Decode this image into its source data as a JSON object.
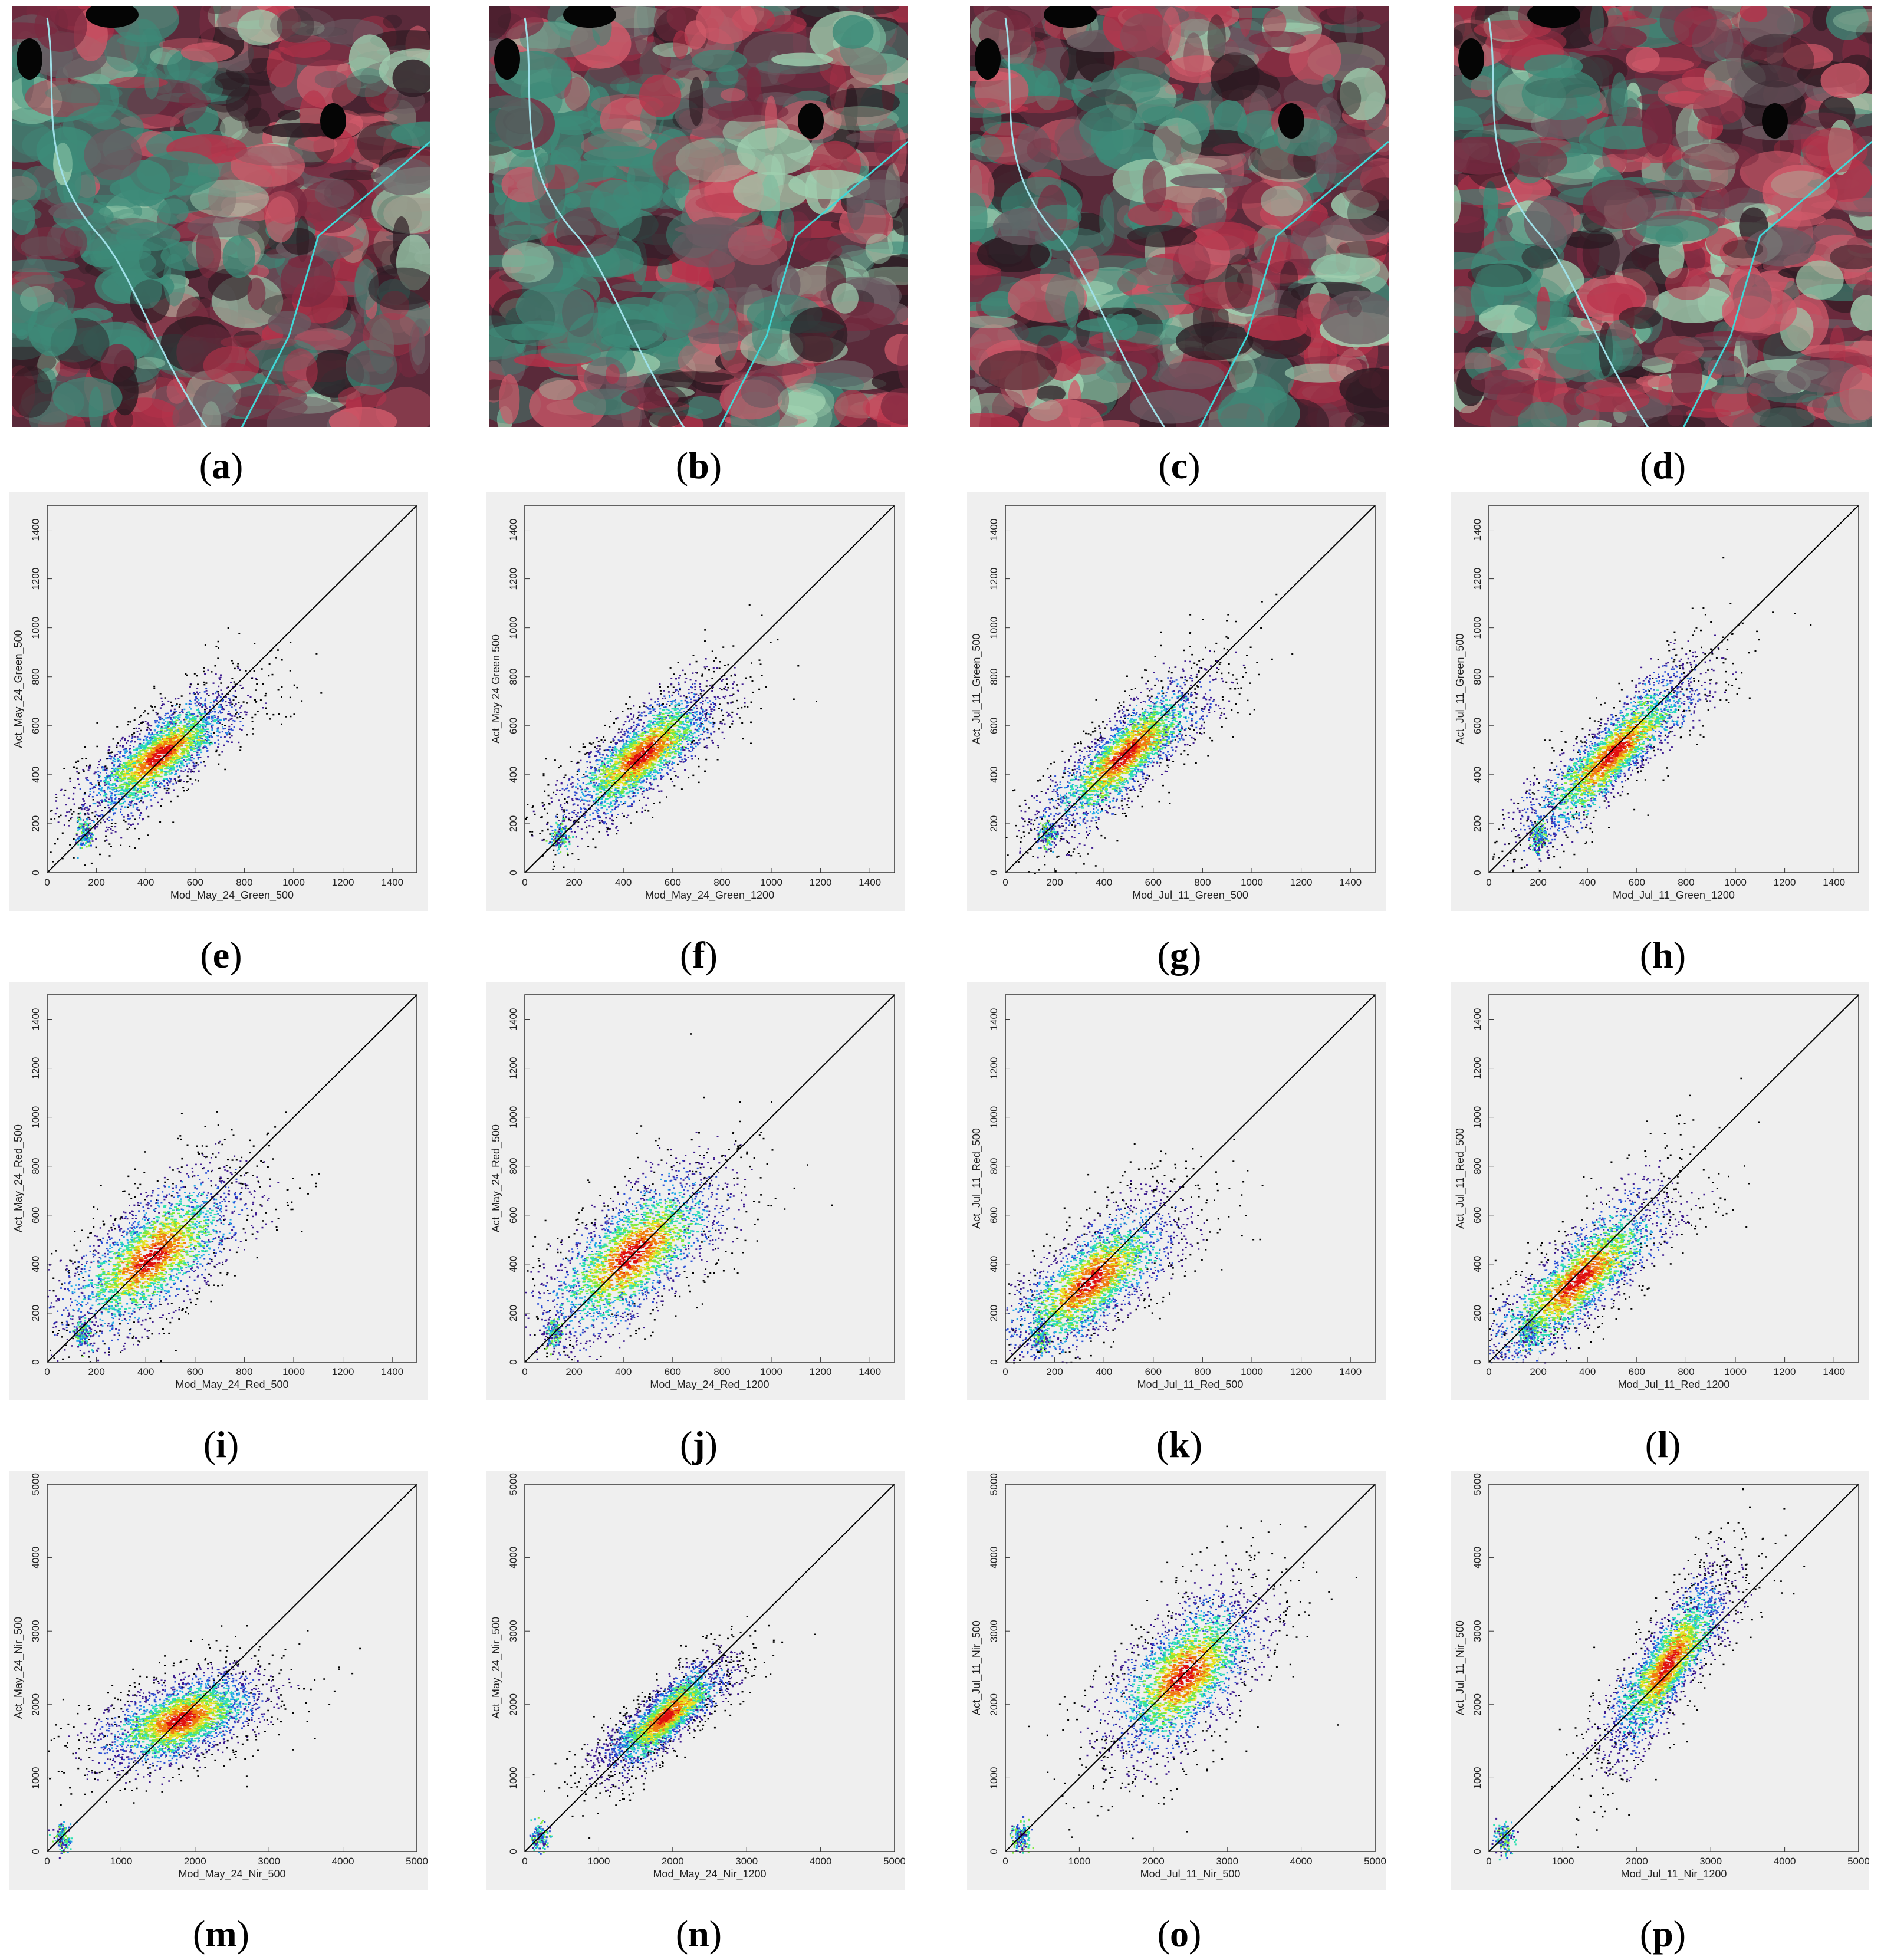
{
  "colors": {
    "plot_background": "#efefef",
    "axis": "#333333",
    "identity_line": "#000000",
    "density_ramp": [
      "#000000",
      "#3d1a8f",
      "#2a4fd6",
      "#21a8e8",
      "#2fe0b0",
      "#7ee83c",
      "#e8e020",
      "#f07a10",
      "#e01010"
    ],
    "satellite_palette": [
      "#b8324a",
      "#7a2a40",
      "#3d8a78",
      "#9fd0b0",
      "#d05a6a",
      "#2c1a22",
      "#6b5a62"
    ]
  },
  "image_panels": [
    {
      "id": "a",
      "label": "a",
      "variant": 0
    },
    {
      "id": "b",
      "label": "b",
      "variant": 1
    },
    {
      "id": "c",
      "label": "c",
      "variant": 2
    },
    {
      "id": "d",
      "label": "d",
      "variant": 3
    }
  ],
  "chart_data": [
    {
      "id": "e",
      "label": "e",
      "type": "scatter",
      "xlabel": "Mod_May_24_Green_500",
      "ylabel": "Act_May_24_Green_500",
      "xlim": [
        0,
        1500
      ],
      "ylim": [
        0,
        1500
      ],
      "xticks": [
        "0",
        "200",
        "400",
        "600",
        "800",
        "1000",
        "1200",
        "1400"
      ],
      "yticks": [
        "0",
        "200",
        "400",
        "600",
        "800",
        "1000",
        "1200",
        "1400"
      ],
      "density_center": [
        450,
        480
      ],
      "density_spread": [
        170,
        140
      ],
      "density_corr": 0.8,
      "low_cluster": [
        150,
        160
      ],
      "identity_line": true
    },
    {
      "id": "f",
      "label": "f",
      "type": "scatter",
      "xlabel": "Mod_May_24_Green_1200",
      "ylabel": "Act_May 24 Green 500",
      "xlim": [
        0,
        1500
      ],
      "ylim": [
        0,
        1500
      ],
      "xticks": [
        "0",
        "200",
        "400",
        "600",
        "800",
        "1000",
        "1200",
        "1400"
      ],
      "yticks": [
        "0",
        "200",
        "400",
        "600",
        "800",
        "1000",
        "1200",
        "1400"
      ],
      "density_center": [
        470,
        480
      ],
      "density_spread": [
        170,
        150
      ],
      "density_corr": 0.8,
      "low_cluster": [
        140,
        150
      ],
      "identity_line": true
    },
    {
      "id": "g",
      "label": "g",
      "type": "scatter",
      "xlabel": "Mod_Jul_11_Green_500",
      "ylabel": "Act_Jul_11_Green_500",
      "xlim": [
        0,
        1500
      ],
      "ylim": [
        0,
        1500
      ],
      "xticks": [
        "0",
        "200",
        "400",
        "600",
        "800",
        "1000",
        "1200",
        "1400"
      ],
      "yticks": [
        "0",
        "200",
        "400",
        "600",
        "800",
        "1000",
        "1200",
        "1400"
      ],
      "density_center": [
        480,
        480
      ],
      "density_spread": [
        180,
        170
      ],
      "density_corr": 0.85,
      "low_cluster": [
        170,
        160
      ],
      "identity_line": true
    },
    {
      "id": "h",
      "label": "h",
      "type": "scatter",
      "xlabel": "Mod_Jul_11_Green_1200",
      "ylabel": "Act_Jul_11_Green_500",
      "xlim": [
        0,
        1500
      ],
      "ylim": [
        0,
        1500
      ],
      "xticks": [
        "0",
        "200",
        "400",
        "600",
        "800",
        "1000",
        "1200",
        "1400"
      ],
      "yticks": [
        "0",
        "200",
        "400",
        "600",
        "800",
        "1000",
        "1200",
        "1400"
      ],
      "density_center": [
        500,
        490
      ],
      "density_spread": [
        190,
        190
      ],
      "density_corr": 0.9,
      "low_cluster": [
        200,
        150
      ],
      "identity_line": true
    },
    {
      "id": "i",
      "label": "i",
      "type": "scatter",
      "xlabel": "Mod_May_24_Red_500",
      "ylabel": "Act_May_24_Red_500",
      "xlim": [
        0,
        1500
      ],
      "ylim": [
        0,
        1500
      ],
      "xticks": [
        "0",
        "200",
        "400",
        "600",
        "800",
        "1000",
        "1200",
        "1400"
      ],
      "yticks": [
        "0",
        "200",
        "400",
        "600",
        "800",
        "1000",
        "1200",
        "1400"
      ],
      "density_center": [
        420,
        430
      ],
      "density_spread": [
        200,
        180
      ],
      "density_corr": 0.7,
      "low_cluster": [
        140,
        120
      ],
      "identity_line": true
    },
    {
      "id": "j",
      "label": "j",
      "type": "scatter",
      "xlabel": "Mod_May_24_Red_1200",
      "ylabel": "Act_May_24_Red_500",
      "xlim": [
        0,
        1500
      ],
      "ylim": [
        0,
        1500
      ],
      "xticks": [
        "0",
        "200",
        "400",
        "600",
        "800",
        "1000",
        "1200",
        "1400"
      ],
      "yticks": [
        "0",
        "200",
        "400",
        "600",
        "800",
        "1000",
        "1200",
        "1400"
      ],
      "density_center": [
        430,
        440
      ],
      "density_spread": [
        200,
        190
      ],
      "density_corr": 0.7,
      "low_cluster": [
        120,
        120
      ],
      "identity_line": true
    },
    {
      "id": "k",
      "label": "k",
      "type": "scatter",
      "xlabel": "Mod_Jul_11_Red_500",
      "ylabel": "Act_Jul_11_Red_500",
      "xlim": [
        0,
        1500
      ],
      "ylim": [
        0,
        1500
      ],
      "xticks": [
        "0",
        "200",
        "400",
        "600",
        "800",
        "1000",
        "1200",
        "1400"
      ],
      "yticks": [
        "0",
        "200",
        "400",
        "600",
        "800",
        "1000",
        "1200",
        "1400"
      ],
      "density_center": [
        340,
        330
      ],
      "density_spread": [
        190,
        170
      ],
      "density_corr": 0.75,
      "low_cluster": [
        140,
        100
      ],
      "identity_line": true
    },
    {
      "id": "l",
      "label": "l",
      "type": "scatter",
      "xlabel": "Mod_Jul_11_Red_1200",
      "ylabel": "Act_Jul_11_Red_500",
      "xlim": [
        0,
        1500
      ],
      "ylim": [
        0,
        1500
      ],
      "xticks": [
        "0",
        "200",
        "400",
        "600",
        "800",
        "1000",
        "1200",
        "1400"
      ],
      "yticks": [
        "0",
        "200",
        "400",
        "600",
        "800",
        "1000",
        "1200",
        "1400"
      ],
      "density_center": [
        360,
        340
      ],
      "density_spread": [
        200,
        190
      ],
      "density_corr": 0.85,
      "low_cluster": [
        160,
        120
      ],
      "identity_line": true
    },
    {
      "id": "m",
      "label": "m",
      "type": "scatter",
      "xlabel": "Mod_May_24_Nir_500",
      "ylabel": "Act_May_24_Nir_500",
      "xlim": [
        0,
        5000
      ],
      "ylim": [
        0,
        5000
      ],
      "xticks": [
        "0",
        "1000",
        "2000",
        "3000",
        "4000",
        "5000"
      ],
      "yticks": [
        "0",
        "1000",
        "2000",
        "3000",
        "4000",
        "5000"
      ],
      "density_center": [
        1800,
        1800
      ],
      "density_spread": [
        600,
        350
      ],
      "density_corr": 0.55,
      "low_cluster": [
        200,
        200
      ],
      "identity_line": true
    },
    {
      "id": "n",
      "label": "n",
      "type": "scatter",
      "xlabel": "Mod_May_24_Nir_1200",
      "ylabel": "Act_May_24_Nir_500",
      "xlim": [
        0,
        5000
      ],
      "ylim": [
        0,
        5000
      ],
      "xticks": [
        "0",
        "1000",
        "2000",
        "3000",
        "4000",
        "5000"
      ],
      "yticks": [
        "0",
        "1000",
        "2000",
        "3000",
        "4000",
        "5000"
      ],
      "density_center": [
        1900,
        1850
      ],
      "density_spread": [
        450,
        400
      ],
      "density_corr": 0.85,
      "low_cluster": [
        200,
        200
      ],
      "identity_line": true
    },
    {
      "id": "o",
      "label": "o",
      "type": "scatter",
      "xlabel": "Mod_Jul_11_Nir_500",
      "ylabel": "Act_Jul_11_Nir_500",
      "xlim": [
        0,
        5000
      ],
      "ylim": [
        0,
        5000
      ],
      "xticks": [
        "0",
        "1000",
        "2000",
        "3000",
        "4000",
        "5000"
      ],
      "yticks": [
        "0",
        "1000",
        "2000",
        "3000",
        "4000",
        "5000"
      ],
      "density_center": [
        2400,
        2400
      ],
      "density_spread": [
        550,
        600
      ],
      "density_corr": 0.6,
      "low_cluster": [
        200,
        200
      ],
      "identity_line": true
    },
    {
      "id": "p",
      "label": "p",
      "type": "scatter",
      "xlabel": "Mod_Jul_11_Nir_1200",
      "ylabel": "Act_Jul_11_Nir_500",
      "xlim": [
        0,
        5000
      ],
      "ylim": [
        0,
        5000
      ],
      "xticks": [
        "0",
        "1000",
        "2000",
        "3000",
        "4000",
        "5000"
      ],
      "yticks": [
        "0",
        "1000",
        "2000",
        "3000",
        "4000",
        "5000"
      ],
      "density_center": [
        2400,
        2550
      ],
      "density_spread": [
        450,
        650
      ],
      "density_corr": 0.85,
      "low_cluster": [
        200,
        200
      ],
      "identity_line": true
    }
  ]
}
